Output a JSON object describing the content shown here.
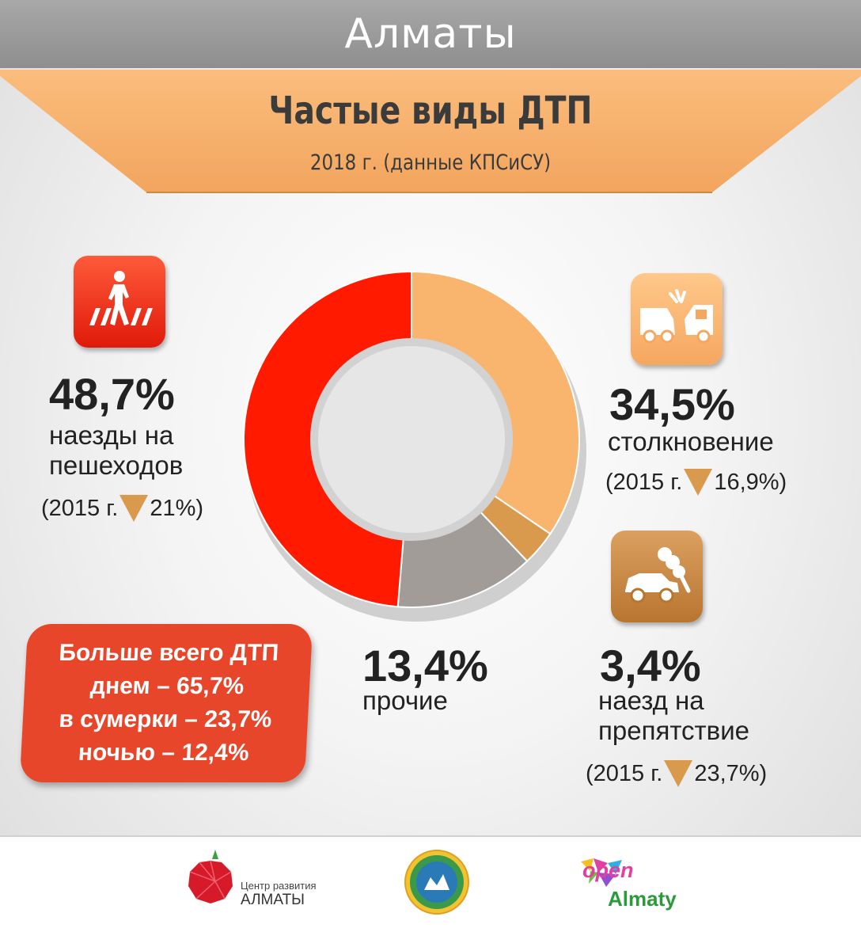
{
  "header": {
    "city": "Алматы",
    "title": "Частые виды ДТП",
    "subtitle": "2018 г. (данные КПСиСУ)"
  },
  "chart_data": {
    "type": "pie",
    "title": "Частые виды ДТП",
    "subtitle": "2018 г. (данные КПСиСУ)",
    "donut": true,
    "slices": [
      {
        "label": "столкновение",
        "value": 34.5,
        "display": "34,5%",
        "color": "#f9b46e",
        "comparison": {
          "prefix": "(2015 г.",
          "value": "16,9%)",
          "direction": "down"
        }
      },
      {
        "label": "наезд на препятствие",
        "value": 3.4,
        "display": "3,4%",
        "color": "#d99a4e",
        "comparison": {
          "prefix": "(2015 г.",
          "value": "23,7%)",
          "direction": "down"
        }
      },
      {
        "label": "прочие",
        "value": 13.4,
        "display": "13,4%",
        "color": "#a19c98"
      },
      {
        "label": "наезды на пешеходов",
        "value": 48.7,
        "display": "48,7%",
        "color": "#ff1a00",
        "comparison": {
          "prefix": "(2015 г.",
          "value": "21%)",
          "direction": "down"
        }
      }
    ]
  },
  "labels": {
    "pedestrian": {
      "pct": "48,7%",
      "line1": "наезды на",
      "line2": "пешеходов",
      "cmp_prefix": "(2015 г.",
      "cmp_value": "21%)"
    },
    "collision": {
      "pct": "34,5%",
      "line1": "столкновение",
      "cmp_prefix": "(2015 г.",
      "cmp_value": "16,9%)"
    },
    "other": {
      "pct": "13,4%",
      "line1": "прочие"
    },
    "obstacle": {
      "pct": "3,4%",
      "line1": "наезд на",
      "line2": "препятствие",
      "cmp_prefix": "(2015 г.",
      "cmp_value": "23,7%)"
    }
  },
  "callout": {
    "line1": "Больше всего ДТП",
    "line2": "днем – 65,7%",
    "line3": "в сумерки – 23,7%",
    "line4": "ночью – 12,4%"
  },
  "icons": {
    "pedestrian": "pedestrian-crossing-icon",
    "collision": "car-collision-icon",
    "obstacle": "car-obstacle-icon"
  },
  "footer": {
    "logo1_line1": "Центр развития",
    "logo1_line2": "АЛМАТЫ",
    "logo3_open": "open",
    "logo3_city": "Almaty"
  }
}
